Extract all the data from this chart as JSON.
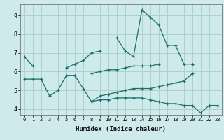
{
  "xlabel": "Humidex (Indice chaleur)",
  "background_color": "#ceeaea",
  "grid_color": "#aed0d0",
  "line_color": "#1a6e6e",
  "x_min": -0.5,
  "x_max": 23.5,
  "y_min": 3.7,
  "y_max": 9.6,
  "yticks": [
    4,
    5,
    6,
    7,
    8,
    9
  ],
  "xticks": [
    0,
    1,
    2,
    3,
    4,
    5,
    6,
    7,
    8,
    9,
    10,
    11,
    12,
    13,
    14,
    15,
    16,
    17,
    18,
    19,
    20,
    21,
    22,
    23
  ],
  "line1_y": [
    6.8,
    6.3,
    null,
    null,
    null,
    6.2,
    6.4,
    6.6,
    7.0,
    7.1,
    null,
    7.8,
    7.1,
    6.8,
    9.3,
    8.9,
    8.5,
    7.4,
    7.4,
    6.4,
    6.4,
    null,
    null,
    null
  ],
  "line2_y": [
    5.6,
    5.6,
    5.6,
    null,
    null,
    null,
    5.8,
    null,
    5.9,
    6.0,
    6.1,
    6.1,
    6.2,
    6.3,
    6.3,
    6.3,
    6.4,
    null,
    null,
    null,
    6.4,
    null,
    null,
    null
  ],
  "line3_y": [
    null,
    null,
    5.6,
    4.7,
    5.0,
    5.8,
    5.8,
    5.1,
    4.4,
    4.7,
    4.8,
    4.9,
    5.0,
    5.1,
    5.1,
    5.1,
    5.2,
    5.3,
    5.4,
    5.5,
    5.9,
    null,
    4.2,
    4.2
  ],
  "line4_y": [
    null,
    null,
    null,
    null,
    null,
    null,
    null,
    null,
    4.4,
    4.5,
    4.5,
    4.6,
    4.6,
    4.6,
    4.6,
    4.5,
    4.4,
    4.3,
    4.3,
    4.2,
    4.2,
    3.8,
    4.2,
    4.2
  ]
}
